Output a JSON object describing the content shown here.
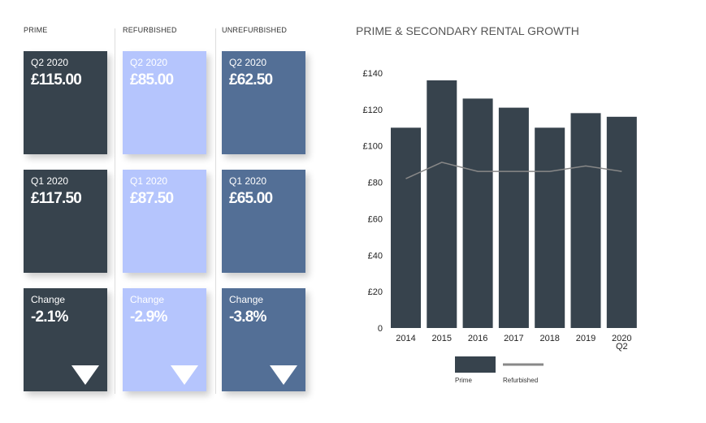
{
  "colors": {
    "prime": "#37434d",
    "refurbished": "#b5c5fd",
    "unrefurbished": "#536f96",
    "line": "#888888"
  },
  "columns": [
    {
      "heading": "PRIME",
      "color": "#37434d",
      "cards": [
        {
          "label": "Q2 2020",
          "value": "£115.00"
        },
        {
          "label": "Q1 2020",
          "value": "£117.50"
        },
        {
          "label": "Change",
          "value": "-2.1%",
          "icon": "triangle-down-icon"
        }
      ]
    },
    {
      "heading": "REFURBISHED",
      "color": "#b5c5fd",
      "cards": [
        {
          "label": "Q2 2020",
          "value": "£85.00"
        },
        {
          "label": "Q1 2020",
          "value": "£87.50"
        },
        {
          "label": "Change",
          "value": "-2.9%",
          "icon": "triangle-down-icon"
        }
      ]
    },
    {
      "heading": "UNREFURBISHED",
      "color": "#536f96",
      "cards": [
        {
          "label": "Q2 2020",
          "value": "£62.50"
        },
        {
          "label": "Q1 2020",
          "value": "£65.00"
        },
        {
          "label": "Change",
          "value": "-3.8%",
          "icon": "triangle-down-icon"
        }
      ]
    }
  ],
  "chart_data": {
    "type": "bar",
    "title": "PRIME & SECONDARY RENTAL GROWTH",
    "categories": [
      "2014",
      "2015",
      "2016",
      "2017",
      "2018",
      "2019",
      "2020 Q2"
    ],
    "yticks": [
      "0",
      "£20",
      "£40",
      "£60",
      "£80",
      "£100",
      "£120",
      "£140"
    ],
    "ylim": [
      0,
      140
    ],
    "grid": false,
    "legend_placement": "bottom",
    "series": [
      {
        "name": "Prime",
        "type": "bar",
        "color": "#37434d",
        "values": [
          110,
          136,
          126,
          121,
          110,
          118,
          116
        ]
      },
      {
        "name": "Refurbished",
        "type": "line",
        "color": "#888888",
        "values": [
          82,
          91,
          86,
          86,
          86,
          89,
          86
        ]
      }
    ]
  }
}
